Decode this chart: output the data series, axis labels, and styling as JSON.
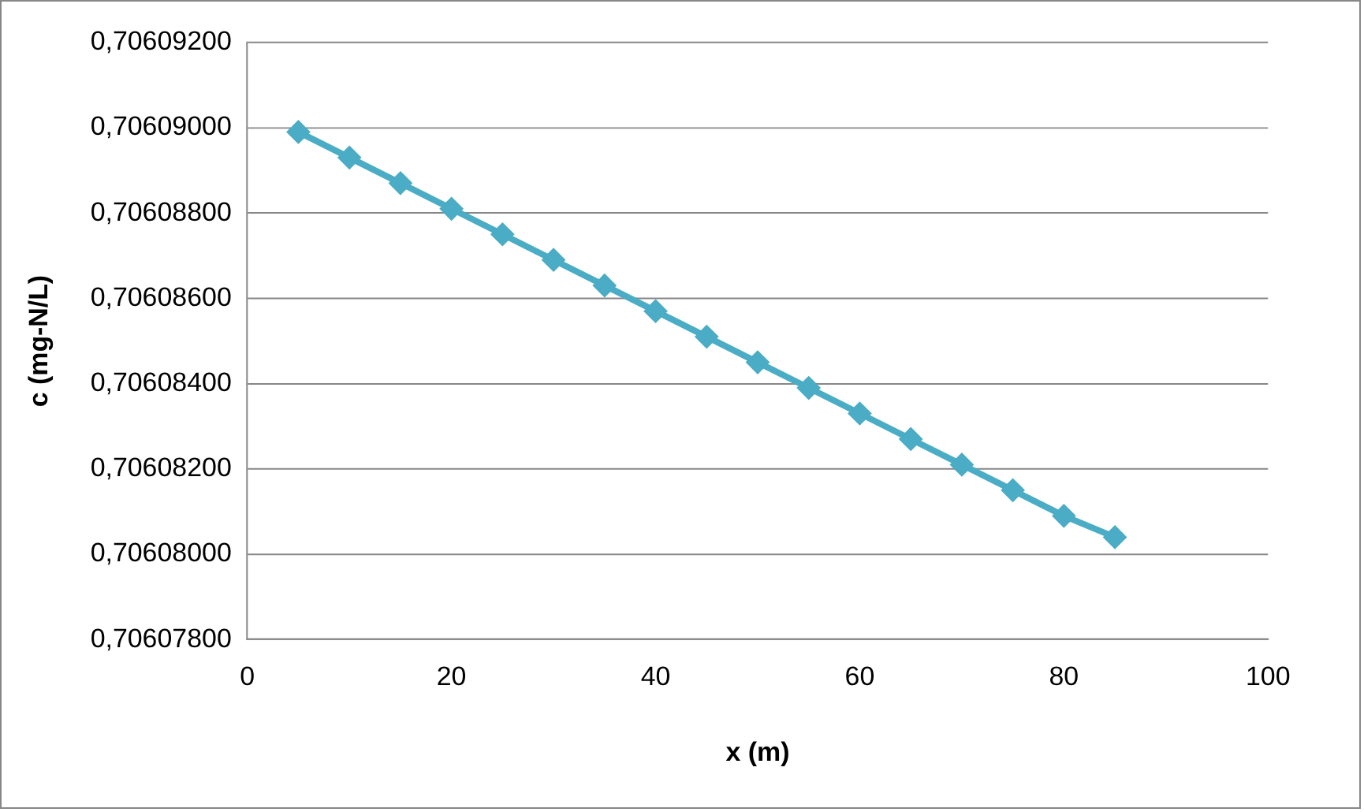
{
  "chart_data": {
    "type": "line",
    "xlabel": "x (m)",
    "ylabel": "c (mg-N/L)",
    "x": [
      5,
      10,
      15,
      20,
      25,
      30,
      35,
      40,
      45,
      50,
      55,
      60,
      65,
      70,
      75,
      80,
      85
    ],
    "series": [
      {
        "color": "#4bacc6",
        "values": [
          0.7060899,
          0.7060893,
          0.7060887,
          0.7060881,
          0.7060875,
          0.7060869,
          0.7060863,
          0.7060857,
          0.7060851,
          0.7060845,
          0.7060839,
          0.7060833,
          0.7060827,
          0.7060821,
          0.7060815,
          0.7060809,
          0.7060804
        ]
      }
    ],
    "xlim": [
      0,
      100
    ],
    "xticks": [
      0,
      20,
      40,
      60,
      80,
      100
    ],
    "ylim": [
      0.706078,
      0.706092
    ],
    "yticks": [
      {
        "value": 0.706078,
        "label": "0,70607800"
      },
      {
        "value": 0.70608,
        "label": "0,70608000"
      },
      {
        "value": 0.706082,
        "label": "0,70608200"
      },
      {
        "value": 0.706084,
        "label": "0,70608400"
      },
      {
        "value": 0.706086,
        "label": "0,70608600"
      },
      {
        "value": 0.706088,
        "label": "0,70608800"
      },
      {
        "value": 0.70609,
        "label": "0,70609000"
      },
      {
        "value": 0.706092,
        "label": "0,70609200"
      }
    ],
    "grid": "y",
    "legend": false,
    "marker": "diamond",
    "line_style": "solid"
  }
}
